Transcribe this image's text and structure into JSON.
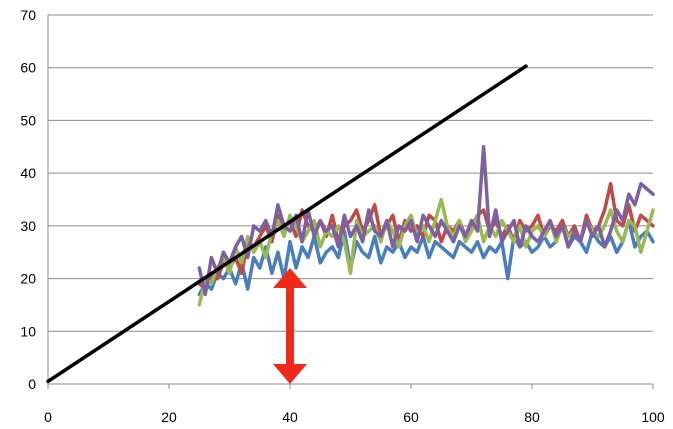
{
  "chart_data": {
    "type": "line",
    "title": "",
    "xlabel": "",
    "ylabel": "",
    "xlim": [
      0,
      100
    ],
    "ylim": [
      0,
      70
    ],
    "x_ticks": [
      "0",
      "20",
      "40",
      "60",
      "80",
      "100"
    ],
    "y_ticks": [
      "0",
      "10",
      "20",
      "30",
      "40",
      "50",
      "60",
      "70"
    ],
    "grid": "horizontal",
    "legend": "none",
    "reference_line": {
      "x": [
        0,
        79
      ],
      "y": [
        0.5,
        60.3
      ],
      "color": "#000000"
    },
    "arrow": {
      "x": 40,
      "y_from": 0,
      "y_to": 22,
      "color": "#ee2a1b",
      "style": "double-headed"
    },
    "series": [
      {
        "color": "#4a7ebb",
        "x": [
          25,
          26,
          27,
          28,
          29,
          30,
          31,
          32,
          33,
          34,
          35,
          36,
          37,
          38,
          39,
          40,
          41,
          42,
          43,
          44,
          45,
          46,
          47,
          48,
          49,
          50,
          51,
          52,
          53,
          54,
          55,
          56,
          57,
          58,
          59,
          60,
          61,
          62,
          63,
          64,
          65,
          66,
          67,
          68,
          69,
          70,
          71,
          72,
          73,
          74,
          75,
          76,
          77,
          78,
          79,
          80,
          81,
          82,
          83,
          84,
          85,
          86,
          87,
          88,
          89,
          90,
          91,
          92,
          93,
          94,
          95,
          96,
          97,
          98,
          99,
          100
        ],
        "y": [
          17,
          19,
          18,
          21,
          20,
          22,
          19,
          23,
          18,
          24,
          22,
          26,
          21,
          25,
          20,
          27,
          22,
          26,
          24,
          28,
          23,
          25,
          26,
          24,
          29,
          22,
          27,
          25,
          24,
          28,
          23,
          26,
          25,
          27,
          24,
          26,
          25,
          28,
          24,
          27,
          26,
          25,
          24,
          27,
          26,
          25,
          27,
          24,
          26,
          25,
          27,
          20,
          28,
          26,
          27,
          25,
          26,
          28,
          26,
          27,
          31,
          26,
          28,
          27,
          25,
          29,
          27,
          26,
          28,
          25,
          27,
          31,
          26,
          28,
          29,
          27
        ]
      },
      {
        "color": "#be4b48",
        "x": [
          25,
          26,
          27,
          28,
          29,
          30,
          31,
          32,
          33,
          34,
          35,
          36,
          37,
          38,
          39,
          40,
          41,
          42,
          43,
          44,
          45,
          46,
          47,
          48,
          49,
          50,
          51,
          52,
          53,
          54,
          55,
          56,
          57,
          58,
          59,
          60,
          61,
          62,
          63,
          64,
          65,
          66,
          67,
          68,
          69,
          70,
          71,
          72,
          73,
          74,
          75,
          76,
          77,
          78,
          79,
          80,
          81,
          82,
          83,
          84,
          85,
          86,
          87,
          88,
          89,
          90,
          91,
          92,
          93,
          94,
          95,
          96,
          97,
          98,
          99,
          100
        ],
        "y": [
          19,
          18,
          21,
          20,
          23,
          22,
          24,
          21,
          27,
          26,
          28,
          30,
          27,
          32,
          29,
          31,
          28,
          33,
          30,
          29,
          31,
          28,
          32,
          27,
          30,
          31,
          33,
          29,
          31,
          34,
          28,
          30,
          32,
          27,
          31,
          29,
          30,
          28,
          32,
          31,
          27,
          30,
          29,
          31,
          28,
          30,
          32,
          33,
          29,
          31,
          28,
          30,
          27,
          31,
          29,
          30,
          32,
          28,
          30,
          29,
          31,
          28,
          30,
          27,
          32,
          29,
          30,
          33,
          38,
          31,
          30,
          34,
          29,
          32,
          31,
          30
        ]
      },
      {
        "color": "#98b954",
        "x": [
          25,
          26,
          27,
          28,
          29,
          30,
          31,
          32,
          33,
          34,
          35,
          36,
          37,
          38,
          39,
          40,
          41,
          42,
          43,
          44,
          45,
          46,
          47,
          48,
          49,
          50,
          51,
          52,
          53,
          54,
          55,
          56,
          57,
          58,
          59,
          60,
          61,
          62,
          63,
          64,
          65,
          66,
          67,
          68,
          69,
          70,
          71,
          72,
          73,
          74,
          75,
          76,
          77,
          78,
          79,
          80,
          81,
          82,
          83,
          84,
          85,
          86,
          87,
          88,
          89,
          90,
          91,
          92,
          93,
          94,
          95,
          96,
          97,
          98,
          99,
          100
        ],
        "y": [
          15,
          20,
          19,
          22,
          24,
          21,
          26,
          23,
          28,
          25,
          27,
          24,
          29,
          31,
          28,
          32,
          30,
          27,
          29,
          31,
          26,
          29,
          28,
          30,
          27,
          21,
          31,
          28,
          29,
          30,
          27,
          31,
          29,
          26,
          30,
          32,
          28,
          30,
          27,
          31,
          35,
          30,
          28,
          31,
          27,
          29,
          32,
          27,
          30,
          28,
          31,
          29,
          27,
          30,
          26,
          29,
          30,
          28,
          31,
          27,
          30,
          28,
          29,
          27,
          31,
          29,
          28,
          30,
          33,
          29,
          27,
          31,
          30,
          25,
          29,
          33
        ]
      },
      {
        "color": "#7d60a0",
        "x": [
          25,
          26,
          27,
          28,
          29,
          30,
          31,
          32,
          33,
          34,
          35,
          36,
          37,
          38,
          39,
          40,
          41,
          42,
          43,
          44,
          45,
          46,
          47,
          48,
          49,
          50,
          51,
          52,
          53,
          54,
          55,
          56,
          57,
          58,
          59,
          60,
          61,
          62,
          63,
          64,
          65,
          66,
          67,
          68,
          69,
          70,
          71,
          72,
          73,
          74,
          75,
          76,
          77,
          78,
          79,
          80,
          81,
          82,
          83,
          84,
          85,
          86,
          87,
          88,
          89,
          90,
          91,
          92,
          93,
          94,
          95,
          96,
          97,
          98,
          99,
          100
        ],
        "y": [
          22,
          17,
          24,
          21,
          25,
          23,
          26,
          28,
          24,
          30,
          29,
          31,
          28,
          34,
          30,
          29,
          32,
          27,
          33,
          28,
          31,
          29,
          30,
          26,
          32,
          28,
          30,
          27,
          33,
          29,
          28,
          31,
          26,
          30,
          29,
          31,
          27,
          32,
          30,
          28,
          31,
          29,
          27,
          30,
          28,
          31,
          29,
          45,
          28,
          33,
          27,
          29,
          31,
          26,
          30,
          28,
          27,
          29,
          31,
          28,
          30,
          26,
          29,
          27,
          31,
          28,
          30,
          26,
          29,
          33,
          31,
          36,
          34,
          38,
          37,
          36
        ]
      }
    ]
  }
}
